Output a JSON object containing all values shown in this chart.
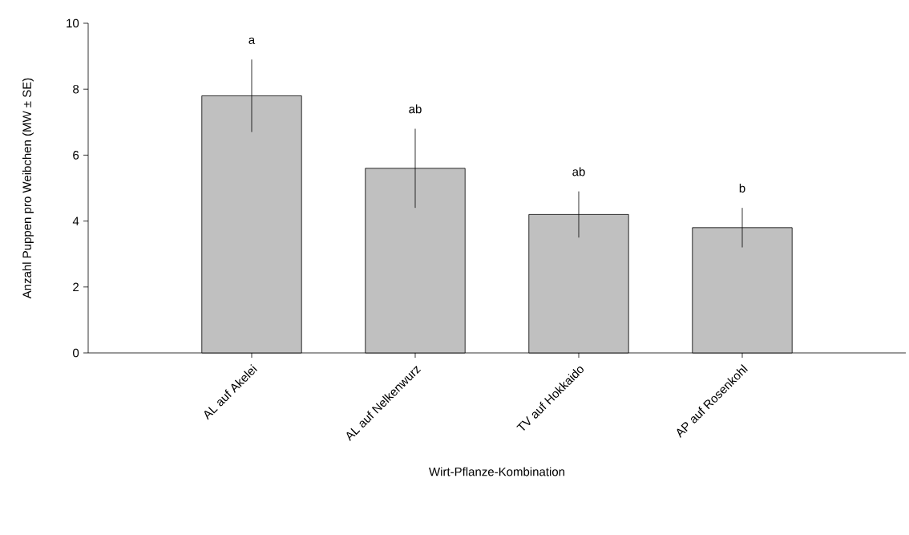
{
  "chart_data": {
    "type": "bar",
    "xlabel": "Wirt-Pflanze-Kombination",
    "ylabel": "Anzahl Puppen pro Weibchen (MW ± SE)",
    "categories": [
      "AL auf Akelei",
      "AL auf Nelkenwurz",
      "TV auf Hokkaido",
      "AP auf Rosenkohl"
    ],
    "values": [
      7.8,
      5.6,
      4.2,
      3.8
    ],
    "errors": [
      1.1,
      1.2,
      0.7,
      0.6
    ],
    "color": "#c0c0c0",
    "ylim": [
      0,
      10
    ],
    "yticks": [
      0,
      2,
      4,
      6,
      8,
      10
    ],
    "grid": false,
    "annotations": [
      "a",
      "ab",
      "ab",
      "b"
    ]
  }
}
